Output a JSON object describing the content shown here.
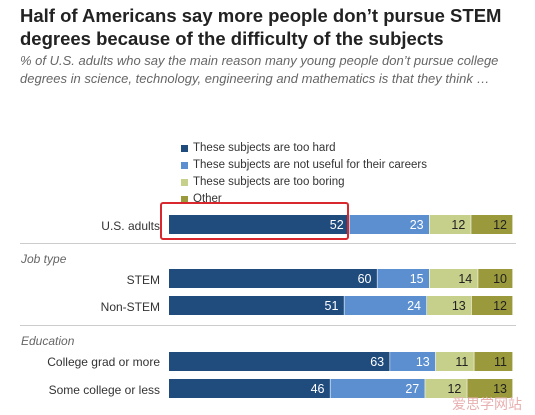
{
  "title": "Half of Americans say more people don’t pursue STEM degrees because of the difficulty of the subjects",
  "subtitle": "% of U.S. adults who say the main reason many young people don’t pursue college degrees in science, technology, engineering and mathematics is that they think …",
  "watermark": "爱思学网站",
  "colors": {
    "too_hard": "#1f4b7d",
    "not_useful": "#5b8fd0",
    "too_boring": "#c6d08a",
    "other": "#9a9a3c",
    "highlight": "#d9272e"
  },
  "sections": {
    "job_type": "Job type",
    "education": "Education"
  },
  "chart_data": {
    "type": "bar",
    "orientation": "horizontal",
    "stacked": true,
    "xlim": [
      0,
      100
    ],
    "grid": false,
    "legend_position": "top",
    "categories": [
      "U.S. adults",
      "STEM",
      "Non-STEM",
      "College grad or more",
      "Some college or less"
    ],
    "series": [
      {
        "name": "These subjects are too hard",
        "values": [
          52,
          60,
          51,
          63,
          46
        ]
      },
      {
        "name": "These subjects are not useful for their careers",
        "values": [
          23,
          15,
          24,
          13,
          27
        ]
      },
      {
        "name": "These subjects are too boring",
        "values": [
          12,
          14,
          13,
          11,
          12
        ]
      },
      {
        "name": "Other",
        "values": [
          12,
          10,
          12,
          11,
          13
        ]
      }
    ]
  }
}
